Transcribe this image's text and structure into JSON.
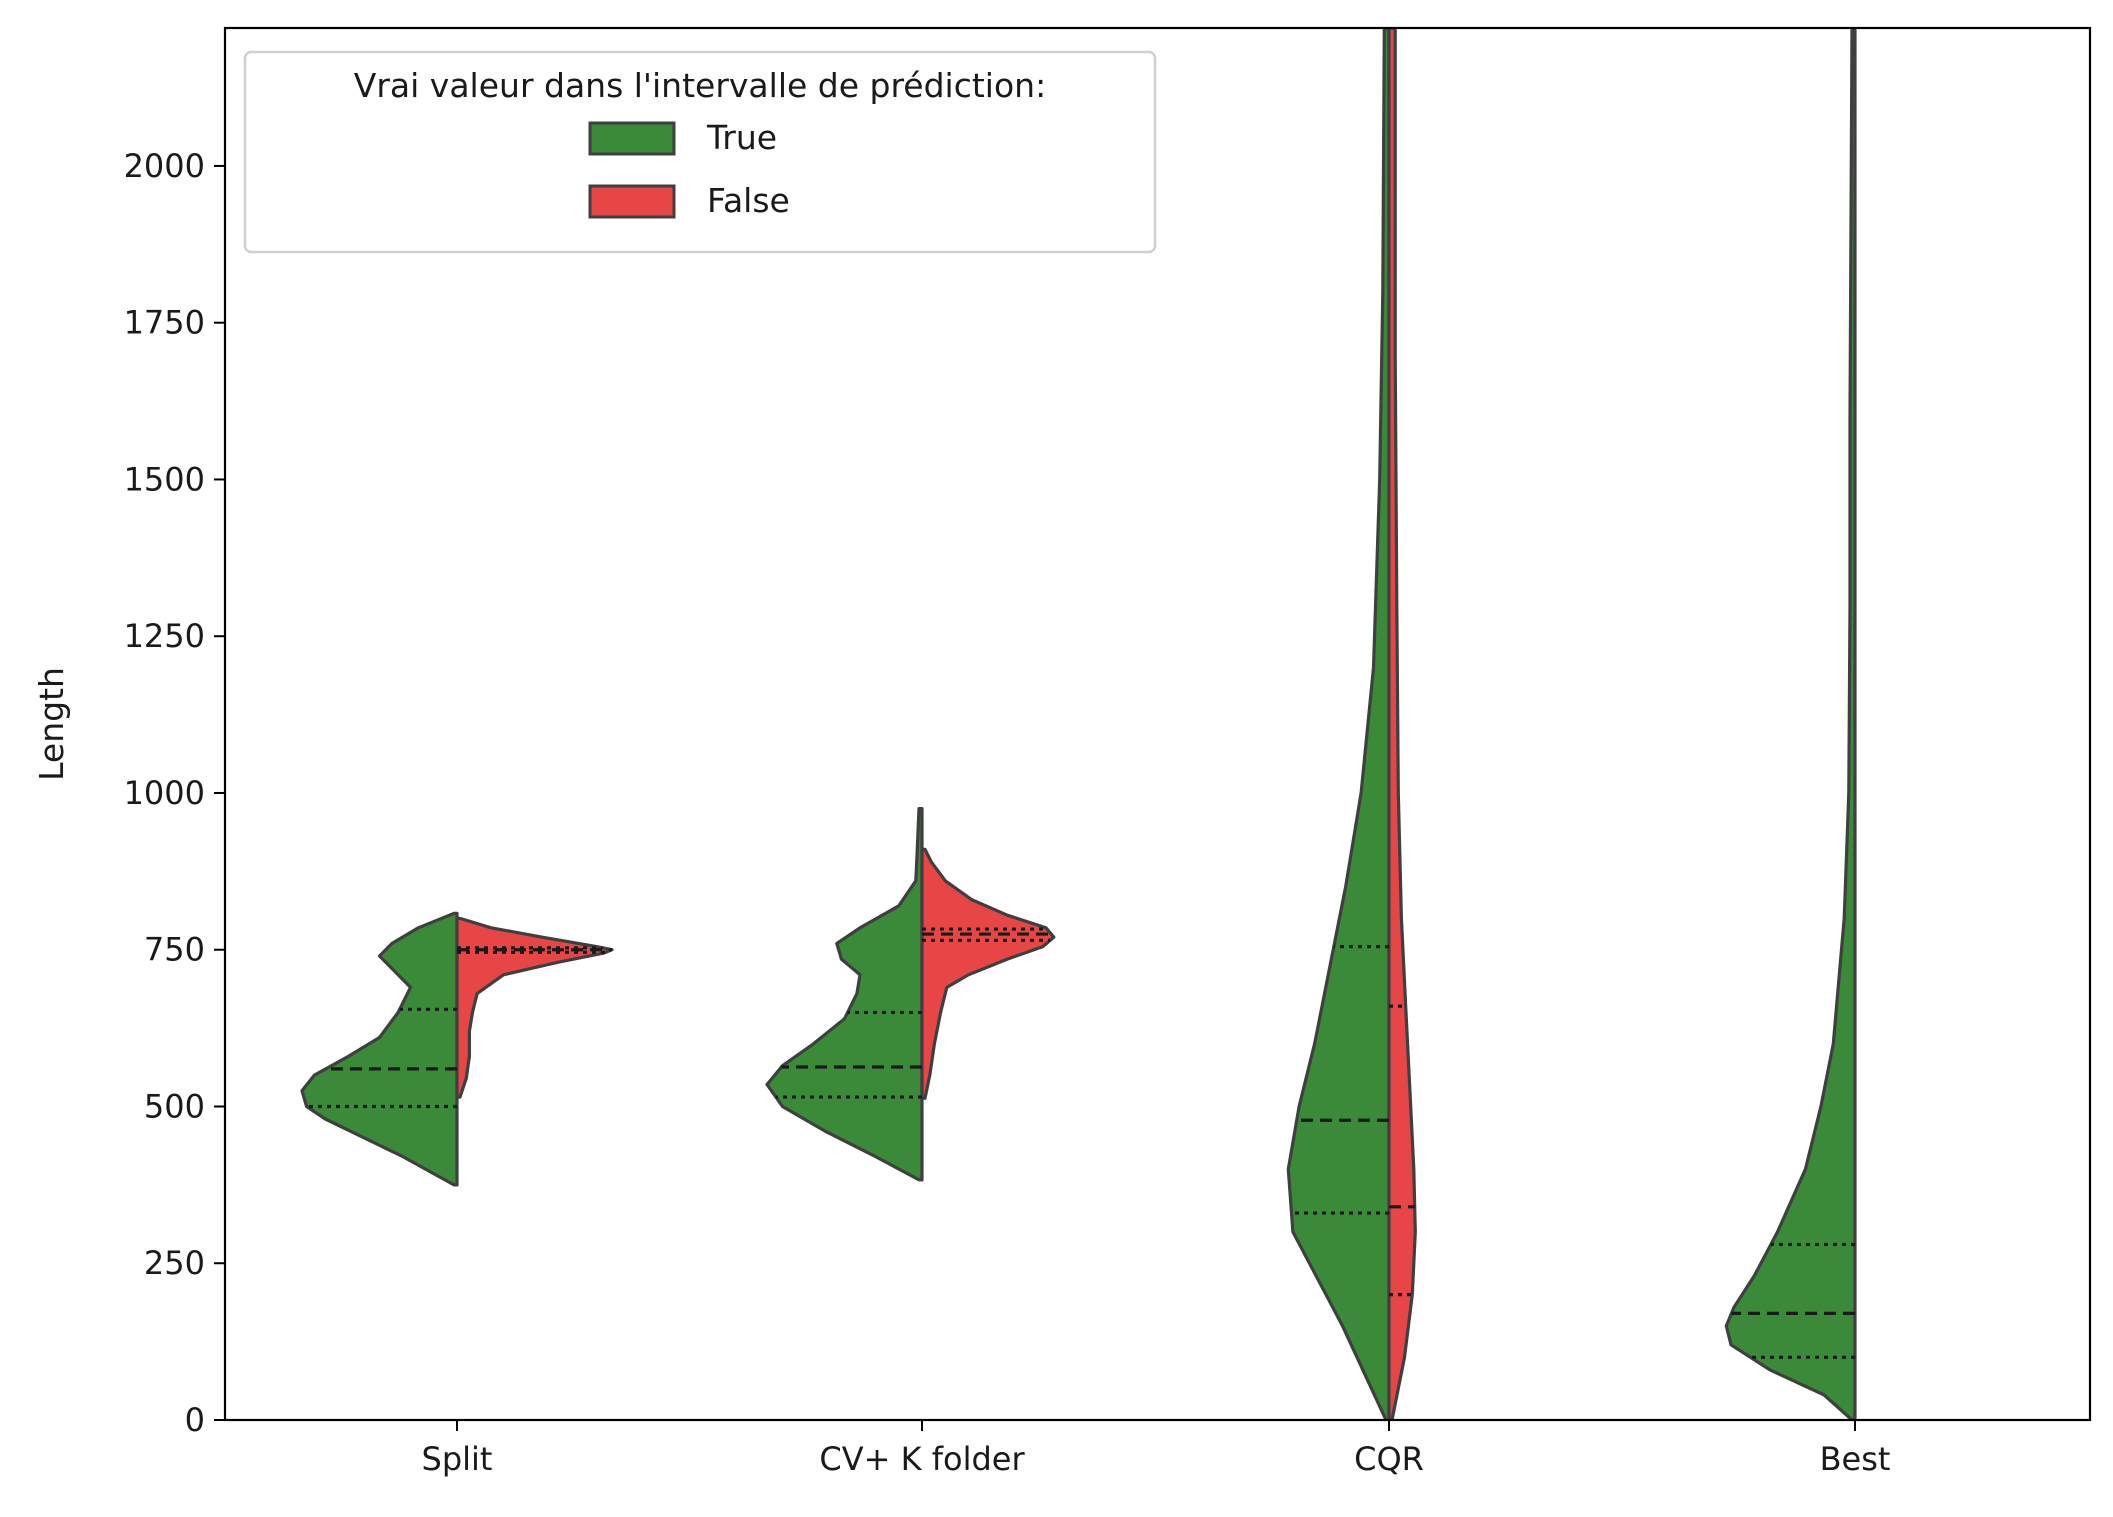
{
  "chart_data": {
    "type": "violin",
    "split": true,
    "title": "",
    "xlabel": "",
    "ylabel": "Length",
    "ylim": [
      0,
      2220
    ],
    "yticks": [
      0,
      250,
      500,
      750,
      1000,
      1250,
      1500,
      1750,
      2000
    ],
    "categories": [
      "Split",
      "CV+ K folder",
      "CQR",
      "Best"
    ],
    "inner": "quartile",
    "grid": false,
    "legend": {
      "title": "Vrai valeur dans l'intervalle de prédiction:",
      "placement": "upper-left",
      "entries": [
        "True",
        "False"
      ]
    },
    "colors": {
      "True": "#3a8a3a",
      "False": "#e84646",
      "edge": "#3f3f3f",
      "quartile": "#1a1a1a"
    },
    "series": [
      {
        "name": "True",
        "side": "left",
        "violins": [
          {
            "category": "Split",
            "min": 375,
            "max": 808,
            "q1": 500,
            "median": 560,
            "q3": 655,
            "profile": [
              [
                375,
                0.0
              ],
              [
                420,
                0.35
              ],
              [
                450,
                0.6
              ],
              [
                480,
                0.85
              ],
              [
                500,
                0.97
              ],
              [
                525,
                1.0
              ],
              [
                550,
                0.92
              ],
              [
                580,
                0.7
              ],
              [
                610,
                0.5
              ],
              [
                650,
                0.38
              ],
              [
                690,
                0.3
              ],
              [
                720,
                0.42
              ],
              [
                740,
                0.5
              ],
              [
                760,
                0.42
              ],
              [
                785,
                0.25
              ],
              [
                808,
                0.0
              ]
            ]
          },
          {
            "category": "CV+ K folder",
            "min": 383,
            "max": 975,
            "q1": 515,
            "median": 563,
            "q3": 650,
            "profile": [
              [
                383,
                0.0
              ],
              [
                420,
                0.3
              ],
              [
                460,
                0.62
              ],
              [
                500,
                0.9
              ],
              [
                535,
                1.0
              ],
              [
                565,
                0.9
              ],
              [
                600,
                0.7
              ],
              [
                640,
                0.5
              ],
              [
                680,
                0.42
              ],
              [
                710,
                0.4
              ],
              [
                735,
                0.52
              ],
              [
                760,
                0.55
              ],
              [
                785,
                0.4
              ],
              [
                820,
                0.15
              ],
              [
                860,
                0.04
              ],
              [
                900,
                0.03
              ],
              [
                975,
                0.0
              ]
            ]
          },
          {
            "category": "CQR",
            "min": 0,
            "max": 2220,
            "q1": 330,
            "median": 478,
            "q3": 755,
            "profile": [
              [
                0,
                0.0
              ],
              [
                150,
                0.3
              ],
              [
                300,
                0.62
              ],
              [
                400,
                0.65
              ],
              [
                500,
                0.58
              ],
              [
                600,
                0.48
              ],
              [
                700,
                0.4
              ],
              [
                850,
                0.28
              ],
              [
                1000,
                0.18
              ],
              [
                1200,
                0.1
              ],
              [
                1500,
                0.06
              ],
              [
                1800,
                0.04
              ],
              [
                2220,
                0.03
              ]
            ]
          },
          {
            "category": "Best",
            "min": 0,
            "max": 2220,
            "q1": 100,
            "median": 170,
            "q3": 280,
            "profile": [
              [
                0,
                0.0
              ],
              [
                40,
                0.2
              ],
              [
                80,
                0.55
              ],
              [
                120,
                0.8
              ],
              [
                150,
                0.83
              ],
              [
                180,
                0.78
              ],
              [
                230,
                0.65
              ],
              [
                300,
                0.5
              ],
              [
                400,
                0.32
              ],
              [
                500,
                0.22
              ],
              [
                600,
                0.14
              ],
              [
                800,
                0.07
              ],
              [
                1000,
                0.04
              ],
              [
                1300,
                0.02
              ],
              [
                1600,
                0.01
              ],
              [
                2220,
                0.0
              ]
            ]
          }
        ]
      },
      {
        "name": "False",
        "side": "right",
        "violins": [
          {
            "category": "Split",
            "min": 515,
            "max": 800,
            "q1": 746,
            "median": 750,
            "q3": 753,
            "profile": [
              [
                515,
                0.0
              ],
              [
                545,
                0.06
              ],
              [
                580,
                0.08
              ],
              [
                620,
                0.08
              ],
              [
                650,
                0.1
              ],
              [
                680,
                0.13
              ],
              [
                710,
                0.3
              ],
              [
                730,
                0.65
              ],
              [
                745,
                0.95
              ],
              [
                750,
                1.0
              ],
              [
                755,
                0.9
              ],
              [
                770,
                0.55
              ],
              [
                785,
                0.22
              ],
              [
                800,
                0.0
              ]
            ]
          },
          {
            "category": "CV+ K folder",
            "min": 513,
            "max": 910,
            "q1": 765,
            "median": 775,
            "q3": 783,
            "profile": [
              [
                513,
                0.0
              ],
              [
                550,
                0.05
              ],
              [
                600,
                0.08
              ],
              [
                650,
                0.12
              ],
              [
                690,
                0.16
              ],
              [
                710,
                0.3
              ],
              [
                735,
                0.55
              ],
              [
                755,
                0.78
              ],
              [
                770,
                0.85
              ],
              [
                785,
                0.8
              ],
              [
                805,
                0.55
              ],
              [
                830,
                0.32
              ],
              [
                860,
                0.15
              ],
              [
                890,
                0.06
              ],
              [
                910,
                0.0
              ]
            ]
          },
          {
            "category": "CQR",
            "min": 0,
            "max": 2220,
            "q1": 200,
            "median": 340,
            "q3": 660,
            "profile": [
              [
                0,
                0.0
              ],
              [
                100,
                0.1
              ],
              [
                200,
                0.15
              ],
              [
                300,
                0.17
              ],
              [
                400,
                0.16
              ],
              [
                500,
                0.14
              ],
              [
                650,
                0.11
              ],
              [
                800,
                0.08
              ],
              [
                1000,
                0.06
              ],
              [
                1300,
                0.05
              ],
              [
                1700,
                0.04
              ],
              [
                2220,
                0.04
              ]
            ]
          }
        ]
      }
    ]
  }
}
